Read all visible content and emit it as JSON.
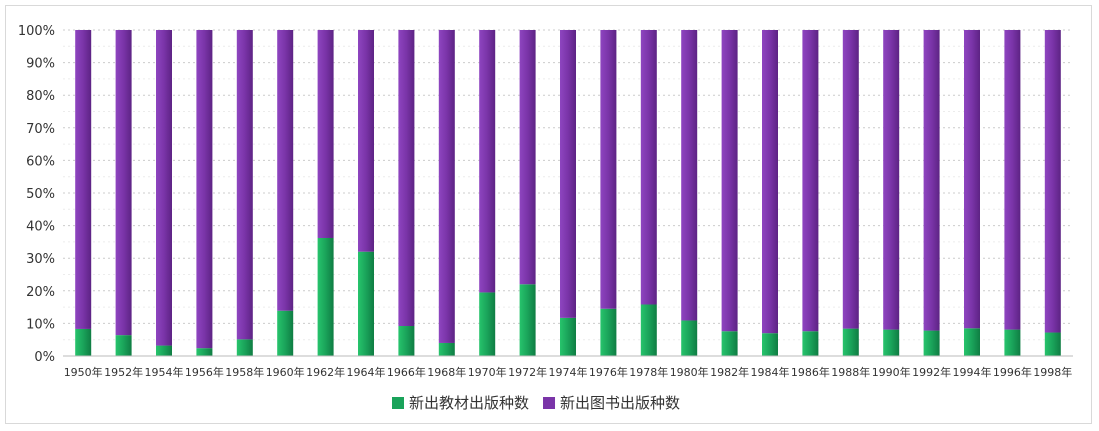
{
  "chart_data": {
    "type": "bar",
    "stacked": "percent",
    "categories": [
      "1950年",
      "1952年",
      "1954年",
      "1956年",
      "1958年",
      "1960年",
      "1962年",
      "1964年",
      "1966年",
      "1968年",
      "1970年",
      "1972年",
      "1974年",
      "1976年",
      "1978年",
      "1980年",
      "1982年",
      "1984年",
      "1986年",
      "1988年",
      "1990年",
      "1992年",
      "1994年",
      "1996年",
      "1998年"
    ],
    "series": [
      {
        "name": "新出教材出版种数",
        "color": "#1aa35a",
        "values": [
          8.3,
          6.4,
          3.2,
          2.4,
          5.1,
          13.9,
          36.2,
          32.0,
          9.2,
          4.0,
          19.5,
          22.0,
          11.7,
          14.5,
          15.8,
          10.9,
          7.6,
          7.0,
          7.6,
          8.4,
          8.1,
          7.8,
          8.5,
          8.1,
          7.2
        ]
      },
      {
        "name": "新出图书出版种数",
        "color": "#7a34a8",
        "values": [
          91.7,
          93.6,
          96.8,
          97.6,
          94.9,
          86.1,
          63.8,
          68.0,
          90.8,
          96.0,
          80.5,
          78.0,
          88.3,
          85.5,
          84.2,
          89.1,
          92.4,
          93.0,
          92.4,
          91.6,
          91.9,
          92.2,
          91.5,
          91.9,
          92.8
        ]
      }
    ],
    "yticks": [
      "0%",
      "10%",
      "20%",
      "30%",
      "40%",
      "50%",
      "60%",
      "70%",
      "80%",
      "90%",
      "100%"
    ],
    "ylim": [
      0,
      100
    ],
    "grid": true,
    "legend_position": "bottom"
  }
}
